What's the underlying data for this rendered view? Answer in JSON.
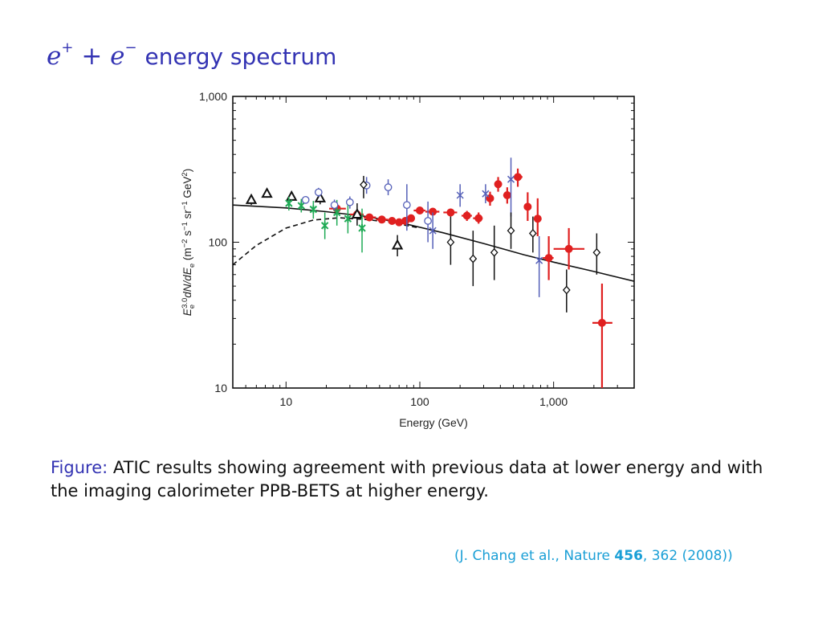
{
  "slide": {
    "title_math_base1": "e",
    "title_math_sup1": "+",
    "title_math_plus": "+",
    "title_math_base2": "e",
    "title_math_sup2": "−",
    "title_rest": "energy spectrum",
    "caption_label": "Figure:",
    "caption_text": "ATIC results showing agreement with previous data at lower energy and with the imaging calorimeter PPB-BETS at higher energy.",
    "ref_prefix": "(J. Chang et al., Nature ",
    "ref_volume": "456",
    "ref_suffix": ", 362 (2008))"
  },
  "colors": {
    "title": "#3333b3",
    "caption_label": "#3333b3",
    "reference": "#1a9fd6",
    "atic": "#e02020",
    "green": "#1faa55",
    "blue": "#5560b8",
    "black": "#111111"
  },
  "chart_data": {
    "type": "scatter",
    "xscale": "log",
    "yscale": "log",
    "xlim": [
      4,
      4000
    ],
    "ylim": [
      10,
      1000
    ],
    "xlabel": "Energy (GeV)",
    "ylabel_parts": [
      "E",
      "e",
      "3.0",
      "dN/dE",
      "e",
      " (m",
      "−2",
      " s",
      "−1",
      " sr",
      "−1",
      " GeV",
      "2",
      ")"
    ],
    "xticks": [
      {
        "value": 10,
        "label": "10"
      },
      {
        "value": 100,
        "label": "100"
      },
      {
        "value": 1000,
        "label": "1,000"
      }
    ],
    "yticks": [
      {
        "value": 10,
        "label": "10"
      },
      {
        "value": 100,
        "label": "100"
      },
      {
        "value": 1000,
        "label": "1,000"
      }
    ],
    "series": [
      {
        "marker": "circle-filled",
        "color": "#e02020",
        "points": [
          {
            "x": 24,
            "y": 170,
            "lo": 165,
            "hi": 176,
            "xlo": 21,
            "xhi": 28
          },
          {
            "x": 34,
            "y": 155,
            "lo": 150,
            "hi": 160,
            "xlo": 30,
            "xhi": 38
          },
          {
            "x": 42,
            "y": 148,
            "lo": 144,
            "hi": 152,
            "xlo": 38,
            "xhi": 47
          },
          {
            "x": 52,
            "y": 143,
            "lo": 139,
            "hi": 147,
            "xlo": 47,
            "xhi": 58
          },
          {
            "x": 62,
            "y": 140,
            "lo": 135,
            "hi": 145,
            "xlo": 58,
            "xhi": 66
          },
          {
            "x": 70,
            "y": 137,
            "lo": 132,
            "hi": 142,
            "xlo": 66,
            "xhi": 74
          },
          {
            "x": 78,
            "y": 140,
            "lo": 134,
            "hi": 146,
            "xlo": 74,
            "xhi": 82
          },
          {
            "x": 86,
            "y": 146,
            "lo": 140,
            "hi": 152,
            "xlo": 82,
            "xhi": 90
          },
          {
            "x": 100,
            "y": 165,
            "lo": 158,
            "hi": 172,
            "xlo": 90,
            "xhi": 110
          },
          {
            "x": 125,
            "y": 162,
            "lo": 154,
            "hi": 170,
            "xlo": 110,
            "xhi": 140
          },
          {
            "x": 170,
            "y": 160,
            "lo": 150,
            "hi": 170,
            "xlo": 150,
            "xhi": 190
          },
          {
            "x": 225,
            "y": 152,
            "lo": 140,
            "hi": 164,
            "xlo": 205,
            "xhi": 245
          },
          {
            "x": 275,
            "y": 146,
            "lo": 134,
            "hi": 160,
            "xlo": 250,
            "xhi": 295
          },
          {
            "x": 335,
            "y": 200,
            "lo": 178,
            "hi": 222,
            "xlo": 315,
            "xhi": 355
          },
          {
            "x": 385,
            "y": 250,
            "lo": 222,
            "hi": 280,
            "xlo": 365,
            "xhi": 405
          },
          {
            "x": 450,
            "y": 210,
            "lo": 184,
            "hi": 238,
            "xlo": 420,
            "xhi": 480
          },
          {
            "x": 540,
            "y": 280,
            "lo": 240,
            "hi": 320,
            "xlo": 500,
            "xhi": 585
          },
          {
            "x": 640,
            "y": 175,
            "lo": 140,
            "hi": 220,
            "xlo": 600,
            "xhi": 680
          },
          {
            "x": 760,
            "y": 145,
            "lo": 110,
            "hi": 200,
            "xlo": 720,
            "xhi": 800
          },
          {
            "x": 920,
            "y": 78,
            "lo": 55,
            "hi": 110,
            "xlo": 830,
            "xhi": 1000
          },
          {
            "x": 1300,
            "y": 90,
            "lo": 65,
            "hi": 125,
            "xlo": 1000,
            "xhi": 1700
          },
          {
            "x": 2300,
            "y": 28,
            "lo": 10,
            "hi": 52,
            "xlo": 1950,
            "xhi": 2750
          }
        ]
      },
      {
        "marker": "triangle-open",
        "color": "#111111",
        "points": [
          {
            "x": 5.5,
            "y": 195,
            "lo": 180,
            "hi": 212
          },
          {
            "x": 7.2,
            "y": 215,
            "lo": 202,
            "hi": 230
          },
          {
            "x": 11,
            "y": 205,
            "lo": 190,
            "hi": 222
          },
          {
            "x": 18,
            "y": 200,
            "lo": 182,
            "hi": 220
          },
          {
            "x": 34,
            "y": 155,
            "lo": 130,
            "hi": 185
          },
          {
            "x": 68,
            "y": 95,
            "lo": 80,
            "hi": 112
          }
        ]
      },
      {
        "marker": "asterisk",
        "color": "#1faa55",
        "points": [
          {
            "x": 10.5,
            "y": 185,
            "lo": 165,
            "hi": 205
          },
          {
            "x": 13,
            "y": 178,
            "lo": 160,
            "hi": 198
          },
          {
            "x": 16,
            "y": 168,
            "lo": 145,
            "hi": 192
          },
          {
            "x": 19.5,
            "y": 130,
            "lo": 105,
            "hi": 160
          },
          {
            "x": 24,
            "y": 160,
            "lo": 130,
            "hi": 195
          },
          {
            "x": 29,
            "y": 145,
            "lo": 115,
            "hi": 180
          },
          {
            "x": 37,
            "y": 125,
            "lo": 85,
            "hi": 170
          }
        ]
      },
      {
        "marker": "circle-open",
        "color": "#5560b8",
        "points": [
          {
            "x": 14,
            "y": 195,
            "lo": 185,
            "hi": 205
          },
          {
            "x": 17.5,
            "y": 220,
            "lo": 205,
            "hi": 236
          },
          {
            "x": 23,
            "y": 180,
            "lo": 165,
            "hi": 196
          },
          {
            "x": 30,
            "y": 188,
            "lo": 170,
            "hi": 206
          },
          {
            "x": 40,
            "y": 245,
            "lo": 215,
            "hi": 280
          },
          {
            "x": 58,
            "y": 238,
            "lo": 210,
            "hi": 270
          },
          {
            "x": 80,
            "y": 180,
            "lo": 120,
            "hi": 250
          },
          {
            "x": 115,
            "y": 140,
            "lo": 100,
            "hi": 190
          }
        ]
      },
      {
        "marker": "cross",
        "color": "#5560b8",
        "points": [
          {
            "x": 125,
            "y": 120,
            "lo": 90,
            "hi": 160
          },
          {
            "x": 200,
            "y": 210,
            "lo": 175,
            "hi": 250
          },
          {
            "x": 310,
            "y": 215,
            "lo": 185,
            "hi": 250
          },
          {
            "x": 480,
            "y": 270,
            "lo": 150,
            "hi": 380
          },
          {
            "x": 780,
            "y": 75,
            "lo": 42,
            "hi": 110
          }
        ]
      },
      {
        "marker": "diamond-open",
        "color": "#111111",
        "points": [
          {
            "x": 38,
            "y": 248,
            "lo": 200,
            "hi": 285
          },
          {
            "x": 170,
            "y": 100,
            "lo": 70,
            "hi": 150
          },
          {
            "x": 250,
            "y": 77,
            "lo": 50,
            "hi": 120
          },
          {
            "x": 360,
            "y": 85,
            "lo": 55,
            "hi": 130
          },
          {
            "x": 480,
            "y": 120,
            "lo": 90,
            "hi": 160
          },
          {
            "x": 700,
            "y": 115,
            "lo": 85,
            "hi": 150
          },
          {
            "x": 1250,
            "y": 47,
            "lo": 33,
            "hi": 65
          },
          {
            "x": 2100,
            "y": 85,
            "lo": 60,
            "hi": 115
          }
        ]
      }
    ],
    "curves": [
      {
        "style": "solid",
        "color": "#111111",
        "x": [
          4,
          10,
          20,
          40,
          80,
          150,
          300,
          600,
          1000,
          2000,
          4000
        ],
        "y": [
          180,
          172,
          162,
          150,
          133,
          116,
          98,
          82,
          73,
          63,
          54
        ]
      },
      {
        "style": "dashed",
        "color": "#111111",
        "x": [
          4,
          6,
          10,
          16,
          25,
          40,
          60,
          100
        ],
        "y": [
          70,
          95,
          125,
          142,
          147,
          143,
          137,
          125
        ]
      }
    ]
  }
}
